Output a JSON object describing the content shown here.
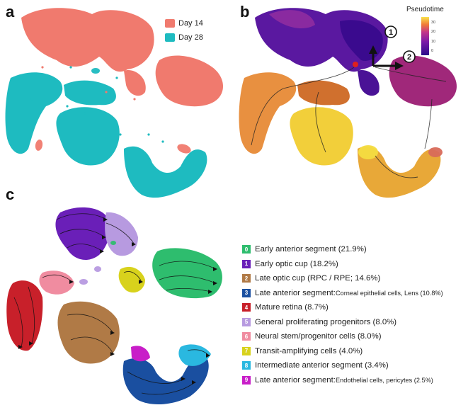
{
  "panels": {
    "a": {
      "letter": "a"
    },
    "b": {
      "letter": "b"
    },
    "c": {
      "letter": "c"
    }
  },
  "panel_a": {
    "legend": [
      {
        "label": "Day 14",
        "color": "#f07a6e"
      },
      {
        "label": "Day 28",
        "color": "#1ebbc0"
      }
    ]
  },
  "panel_b": {
    "colorbar_title": "Pseudotime",
    "colorbar_ticks": [
      "30",
      "20",
      "10",
      "0"
    ],
    "branch_labels": [
      "1",
      "2"
    ]
  },
  "panel_c": {
    "legend": [
      {
        "num": "0",
        "label": "Early anterior segment (21.9%)",
        "small": "",
        "color": "#2ebd6e"
      },
      {
        "num": "1",
        "label": "Early optic cup (18.2%)",
        "small": "",
        "color": "#6a1fb8"
      },
      {
        "num": "2",
        "label": "Late optic cup (RPC / RPE; 14.6%)",
        "small": "",
        "color": "#b07a46"
      },
      {
        "num": "3",
        "label": "Late anterior segment: ",
        "small": "Corneal epithelial cells, Lens (10.8%)",
        "color": "#1a4fa0"
      },
      {
        "num": "4",
        "label": "Mature retina (8.7%)",
        "small": "",
        "color": "#c8202a"
      },
      {
        "num": "5",
        "label": "General proliferating progenitors (8.0%)",
        "small": "",
        "color": "#b79ae0"
      },
      {
        "num": "6",
        "label": "Neural stem/progenitor cells (8.0%)",
        "small": "",
        "color": "#f08ca0"
      },
      {
        "num": "7",
        "label": "Transit-amplifying cells (4.0%)",
        "small": "",
        "color": "#d8d21c"
      },
      {
        "num": "8",
        "label": "Intermediate anterior segment (3.4%)",
        "small": "",
        "color": "#2ab8e0"
      },
      {
        "num": "9",
        "label": "Late anterior segment: ",
        "small": "Endothelial cells, pericytes (2.5%)",
        "color": "#c81ec8"
      }
    ]
  }
}
